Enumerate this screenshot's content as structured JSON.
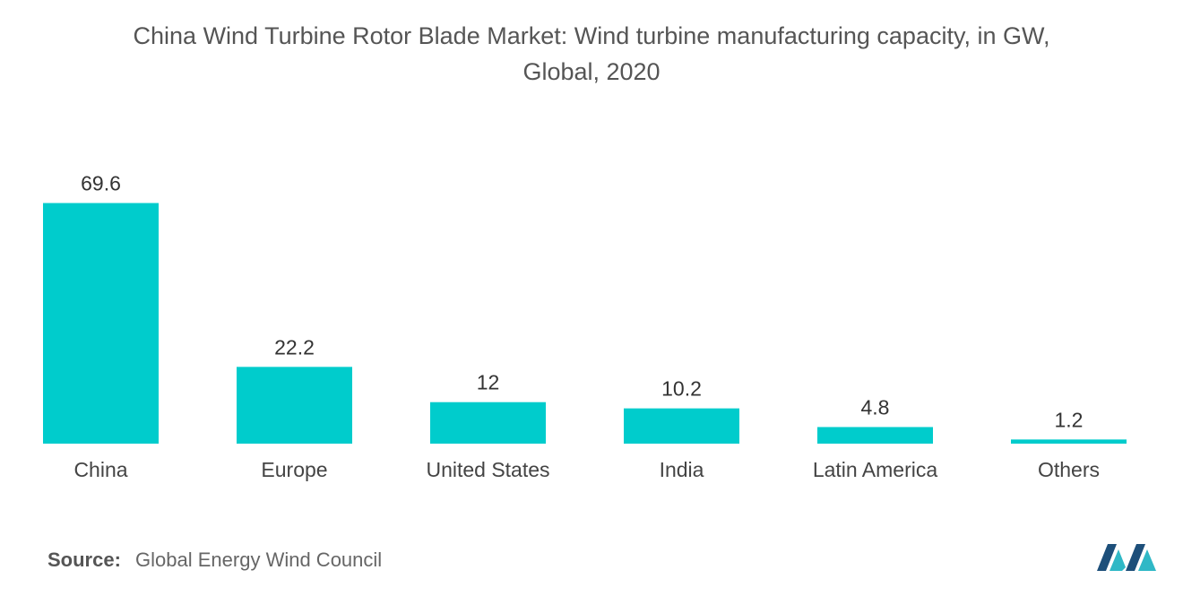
{
  "title_line1": "China Wind Turbine Rotor Blade Market: Wind turbine manufacturing capacity, in GW,",
  "title_line2": "Global, 2020",
  "source_label": "Source:",
  "source_text": "Global Energy Wind Council",
  "colors": {
    "bar": "#00cccc",
    "logo_dark": "#1d4f7a",
    "logo_light": "#2fb8c6"
  },
  "chart_data": {
    "type": "bar",
    "title": "China Wind Turbine Rotor Blade Market: Wind turbine manufacturing capacity, in GW, Global, 2020",
    "categories": [
      "China",
      "Europe",
      "United States",
      "India",
      "Latin America",
      "Others"
    ],
    "values": [
      69.6,
      22.2,
      12,
      10.2,
      4.8,
      1.2
    ],
    "value_labels": [
      "69.6",
      "22.2",
      "12",
      "10.2",
      "4.8",
      "1.2"
    ],
    "xlabel": "",
    "ylabel": "",
    "ylim": [
      0,
      70
    ],
    "grid": false,
    "legend": "none"
  }
}
